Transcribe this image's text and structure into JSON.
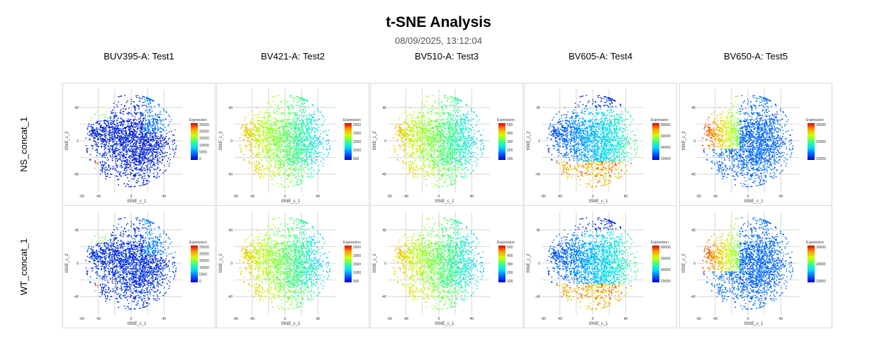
{
  "title": "t-SNE Analysis",
  "subtitle": "08/09/2025, 13:12:04",
  "chart_data": {
    "type": "scatter",
    "layout": "grid",
    "xlabel": "tSNE_c_1",
    "ylabel": "tSNE_c_2",
    "x_ticks": [
      "-60",
      "-40",
      "0",
      "40"
    ],
    "y_ticks": [
      "40",
      "0",
      "-40"
    ],
    "xlim": [
      -62,
      62
    ],
    "ylim": [
      -62,
      62
    ],
    "legend_title": "Expression",
    "colormap": [
      "#0000c8",
      "#0064ff",
      "#00dcff",
      "#40ff80",
      "#d0ff00",
      "#ffa000",
      "#e00000"
    ],
    "grid": true,
    "rows": [
      "NS_concat_1",
      "WT_concat_1"
    ],
    "columns": [
      {
        "title": "BUV395-A: Test1",
        "colorbar_ticks": [
          "25000",
          "20000",
          "15000",
          "10000",
          "5000",
          "0"
        ]
      },
      {
        "title": "BV421-A: Test2",
        "colorbar_ticks": [
          "2500",
          "2000",
          "1500",
          "1000",
          "500"
        ]
      },
      {
        "title": "BV510-A: Test3",
        "colorbar_ticks": [
          "500",
          "400",
          "300",
          "200",
          "100"
        ]
      },
      {
        "title": "BV605-A: Test4",
        "colorbar_ticks": [
          "80000",
          "60000",
          "40000",
          "20000"
        ]
      },
      {
        "title": "BV650-A: Test5",
        "colorbar_ticks": [
          "30000",
          "20000",
          "10000"
        ]
      }
    ]
  }
}
